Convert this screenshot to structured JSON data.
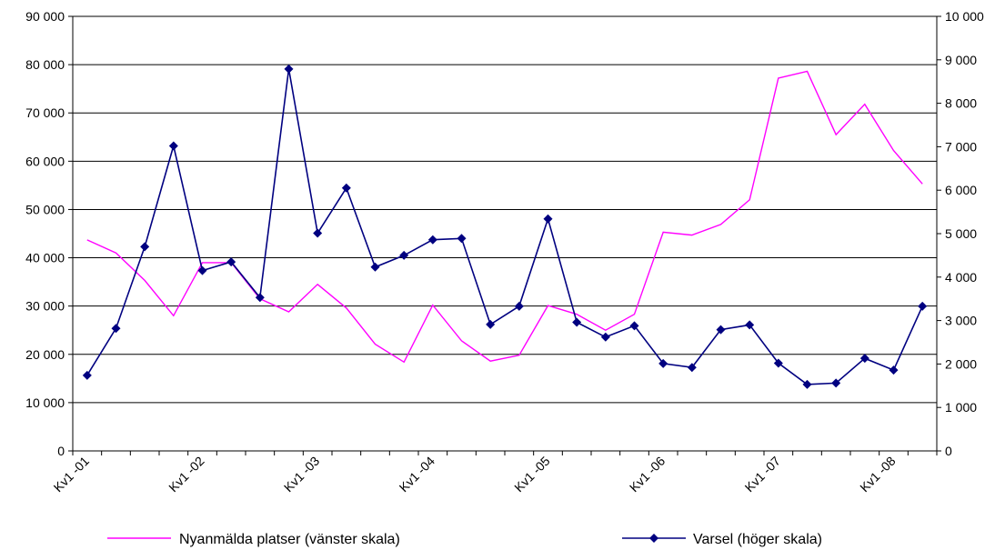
{
  "chart_data": {
    "type": "line",
    "x": [
      "Kv1 -01",
      "Kv2 -01",
      "Kv3 -01",
      "Kv4 -01",
      "Kv1 -02",
      "Kv2 -02",
      "Kv3 -02",
      "Kv4 -02",
      "Kv1 -03",
      "Kv2 -03",
      "Kv3 -03",
      "Kv4 -03",
      "Kv1 -04",
      "Kv2 -04",
      "Kv3 -04",
      "Kv4 -04",
      "Kv1 -05",
      "Kv2 -05",
      "Kv3 -05",
      "Kv4 -05",
      "Kv1 -06",
      "Kv2 -06",
      "Kv3 -06",
      "Kv4 -06",
      "Kv1 -07",
      "Kv2 -07",
      "Kv3 -07",
      "Kv4 -07",
      "Kv1 -08",
      "Kv2 -08"
    ],
    "x_tick_labels": [
      "Kv1 -01",
      "Kv1 -02",
      "Kv1 -03",
      "Kv1 -04",
      "Kv1 -05",
      "Kv1 -06",
      "Kv1 -07",
      "Kv1 -08"
    ],
    "y_left": {
      "ylim": [
        0,
        90000
      ],
      "ticks": [
        "0",
        "10 000",
        "20 000",
        "30 000",
        "40 000",
        "50 000",
        "60 000",
        "70 000",
        "80 000",
        "90 000"
      ]
    },
    "y_right": {
      "ylim": [
        0,
        10000
      ],
      "ticks": [
        "0",
        "1 000",
        "2 000",
        "3 000",
        "4 000",
        "5 000",
        "6 000",
        "7 000",
        "8 000",
        "9 000",
        "10 000"
      ]
    },
    "grid": true,
    "legend_position": "bottom",
    "series": [
      {
        "name": "Nyanmälda platser (vänster skala)",
        "axis": "left",
        "color": "#ff00ff",
        "marker": "none",
        "values": [
          43700,
          41000,
          35300,
          28000,
          39000,
          39000,
          31500,
          28800,
          34500,
          29600,
          22100,
          18400,
          30200,
          22800,
          18600,
          19800,
          30100,
          28300,
          25000,
          28300,
          45300,
          44700,
          46900,
          52000,
          77200,
          78600,
          65500,
          71800,
          62200,
          55300
        ]
      },
      {
        "name": "Varsel (höger skala)",
        "axis": "right",
        "color": "#000080",
        "marker": "diamond",
        "values": [
          1740,
          2820,
          4700,
          7020,
          4150,
          4350,
          3530,
          8790,
          5010,
          6050,
          4230,
          4500,
          4860,
          4890,
          2910,
          3330,
          5340,
          2960,
          2620,
          2880,
          2010,
          1920,
          2790,
          2900,
          2020,
          1530,
          1560,
          2130,
          1860,
          3330
        ]
      }
    ]
  }
}
